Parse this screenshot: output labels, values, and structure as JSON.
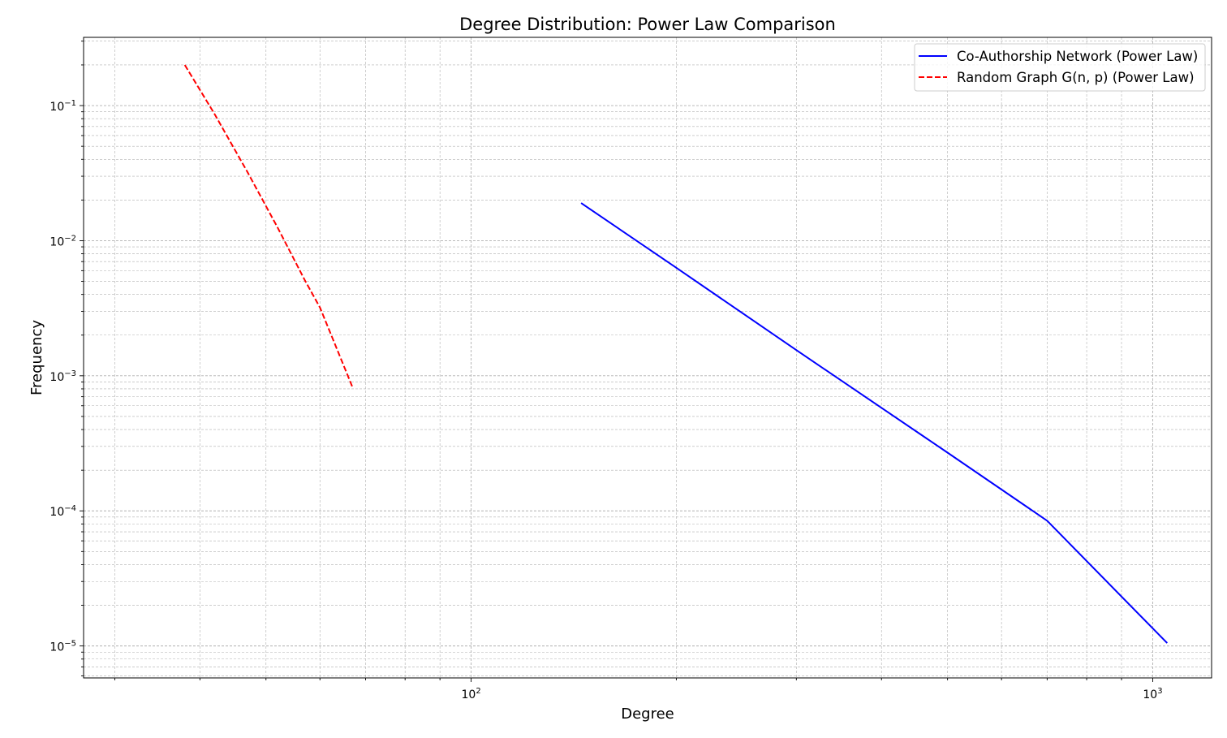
{
  "chart_data": {
    "type": "line",
    "title": "Degree Distribution: Power Law Comparison",
    "xlabel": "Degree",
    "ylabel": "Frequency",
    "xscale": "log",
    "yscale": "log",
    "xlim": [
      27.0,
      1220.0
    ],
    "ylim": [
      5.8e-06,
      0.32
    ],
    "grid": true,
    "legend_position": "top-right",
    "x_ticks": [
      {
        "value": 100,
        "base": "10",
        "exp": "2"
      },
      {
        "value": 1000,
        "base": "10",
        "exp": "3"
      }
    ],
    "y_ticks": [
      {
        "value": 0.1,
        "base": "10",
        "exp": "−1"
      },
      {
        "value": 0.01,
        "base": "10",
        "exp": "−2"
      },
      {
        "value": 0.001,
        "base": "10",
        "exp": "−3"
      },
      {
        "value": 0.0001,
        "base": "10",
        "exp": "−4"
      },
      {
        "value": 1e-05,
        "base": "10",
        "exp": "−5"
      }
    ],
    "series": [
      {
        "name": "Co-Authorship Network (Power Law)",
        "color": "#0000ff",
        "style": "solid",
        "x": [
          145,
          200,
          300,
          500,
          700,
          1050
        ],
        "y": [
          0.019,
          0.0063,
          0.00155,
          0.00027,
          8.45e-05,
          1.05e-05
        ]
      },
      {
        "name": "Random Graph G(n, p) (Power Law)",
        "color": "#ff0000",
        "style": "dashed",
        "x": [
          38,
          42,
          47,
          52,
          57,
          60,
          67
        ],
        "y": [
          0.2,
          0.087,
          0.032,
          0.0125,
          0.0051,
          0.0032,
          0.00082
        ]
      }
    ]
  }
}
